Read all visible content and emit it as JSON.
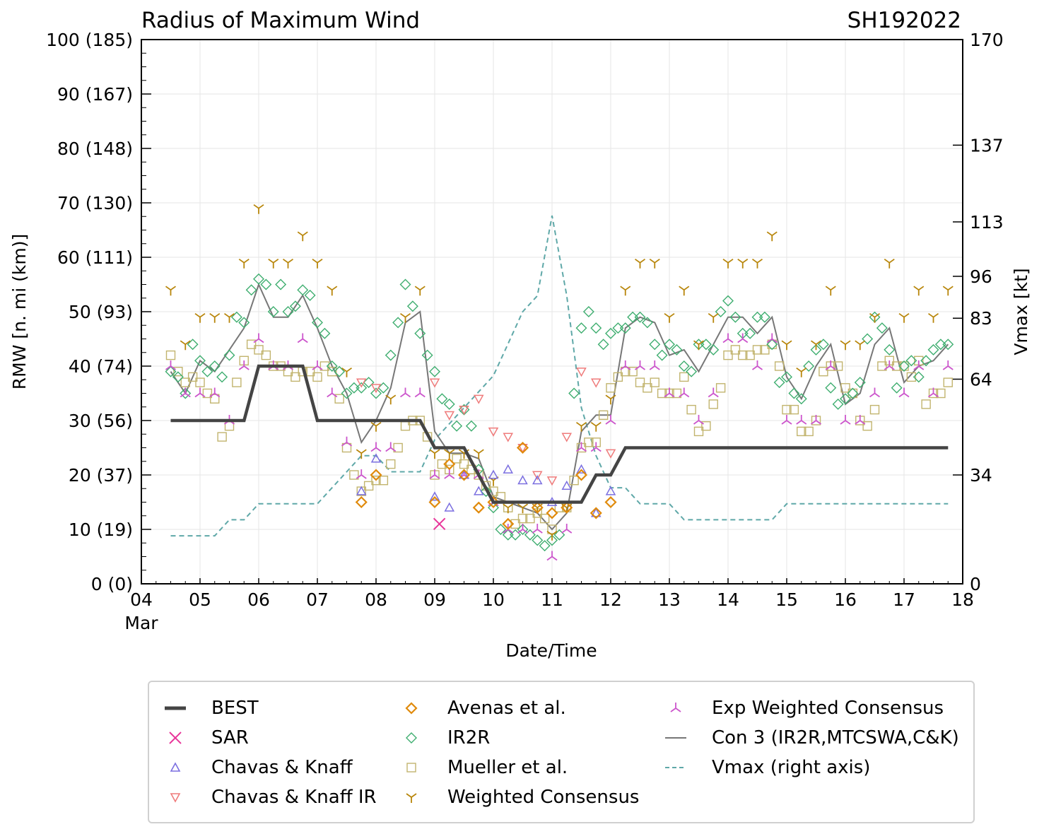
{
  "chart_data": {
    "type": "line",
    "title": "Radius of Maximum Wind",
    "storm_id": "SH192022",
    "xlabel": "Date/Time",
    "ylabel": "RMW [n. mi (km)]",
    "ylabel_right": "Vmax [kt]",
    "x_range_days": [
      4,
      18
    ],
    "x_ticks": [
      "04",
      "05",
      "06",
      "07",
      "08",
      "09",
      "10",
      "11",
      "12",
      "13",
      "14",
      "15",
      "16",
      "17",
      "18"
    ],
    "x_month_label": "Mar",
    "ylim": [
      0,
      100
    ],
    "y_ticks": [
      "0 (0)",
      "10 (19)",
      "20 (37)",
      "30 (56)",
      "40 (74)",
      "50 (93)",
      "60 (111)",
      "70 (130)",
      "80 (148)",
      "90 (167)",
      "100 (185)"
    ],
    "y_right_ticks": [
      {
        "label": "0",
        "value": 0
      },
      {
        "label": "34",
        "value": 20
      },
      {
        "label": "64",
        "value": 37.6
      },
      {
        "label": "83",
        "value": 48.8
      },
      {
        "label": "96",
        "value": 56.5
      },
      {
        "label": "113",
        "value": 66.5
      },
      {
        "label": "137",
        "value": 80.6
      },
      {
        "label": "170",
        "value": 100
      }
    ],
    "grid": true,
    "series": [
      {
        "name": "BEST",
        "type": "line",
        "color": "#444444",
        "x": [
          4.5,
          5.75,
          6.0,
          6.75,
          7.0,
          8.75,
          9.0,
          9.5,
          10.0,
          11.5,
          11.75,
          12.0,
          12.25,
          17.75
        ],
        "y": [
          30,
          30,
          40,
          40,
          30,
          30,
          25,
          25,
          15,
          15,
          20,
          20,
          25,
          25
        ]
      },
      {
        "name": "SAR",
        "type": "scatter",
        "marker": "x",
        "color": "#e8359a",
        "x": [
          9.08
        ],
        "y": [
          11
        ]
      },
      {
        "name": "Chavas & Knaff",
        "type": "scatter",
        "marker": "triangle-up",
        "color": "#7b6fe0",
        "x": [
          7.75,
          8.0,
          9.0,
          9.25,
          9.5,
          9.75,
          10.0,
          10.25,
          10.5,
          10.75,
          11.0,
          11.25,
          11.5,
          11.75,
          12.0
        ],
        "y": [
          17,
          23,
          16,
          14,
          20,
          17,
          20,
          21,
          19,
          19,
          15,
          18,
          21,
          13,
          17
        ]
      },
      {
        "name": "Chavas & Knaff IR",
        "type": "scatter",
        "marker": "triangle-down",
        "color": "#ef7b7b",
        "x": [
          7.75,
          8.0,
          9.0,
          9.25,
          9.5,
          9.75,
          10.0,
          10.25,
          10.5,
          10.75,
          11.0,
          11.25,
          11.5,
          11.75,
          12.0
        ],
        "y": [
          37,
          36,
          37,
          31,
          32,
          34,
          28,
          27,
          25,
          20,
          19,
          27,
          39,
          37,
          24
        ]
      },
      {
        "name": "Avenas et al.",
        "type": "scatter",
        "marker": "diamond",
        "color": "#e08a0b",
        "x": [
          7.75,
          8.0,
          9.0,
          9.25,
          9.5,
          9.75,
          10.0,
          10.25,
          10.5,
          10.75,
          11.0,
          11.25,
          11.5,
          11.75,
          12.0
        ],
        "y": [
          15,
          20,
          15,
          22,
          20,
          14,
          15,
          11,
          25,
          14,
          13,
          14,
          20,
          13,
          15
        ]
      },
      {
        "name": "IR2R",
        "type": "scatter",
        "marker": "diamond",
        "color": "#3fae70",
        "x": [
          4.5,
          4.625,
          4.75,
          4.875,
          5.0,
          5.125,
          5.25,
          5.375,
          5.5,
          5.625,
          5.75,
          5.875,
          6.0,
          6.125,
          6.25,
          6.375,
          6.5,
          6.625,
          6.75,
          6.875,
          7.0,
          7.125,
          7.25,
          7.375,
          7.5,
          7.625,
          7.75,
          7.875,
          8.0,
          8.125,
          8.25,
          8.375,
          8.5,
          8.625,
          8.75,
          8.875,
          9.0,
          9.125,
          9.25,
          9.375,
          9.5,
          9.625,
          9.75,
          9.875,
          10.0,
          10.125,
          10.25,
          10.375,
          10.5,
          10.625,
          10.75,
          10.875,
          11.0,
          11.125,
          11.25,
          11.375,
          11.5,
          11.625,
          11.75,
          11.875,
          12.0,
          12.125,
          12.25,
          12.375,
          12.5,
          12.625,
          12.75,
          12.875,
          13.0,
          13.125,
          13.25,
          13.375,
          13.5,
          13.625,
          13.75,
          13.875,
          14.0,
          14.125,
          14.25,
          14.375,
          14.5,
          14.625,
          14.75,
          14.875,
          15.0,
          15.125,
          15.25,
          15.375,
          15.5,
          15.625,
          15.75,
          15.875,
          16.0,
          16.125,
          16.25,
          16.375,
          16.5,
          16.625,
          16.75,
          16.875,
          17.0,
          17.125,
          17.25,
          17.375,
          17.5,
          17.625,
          17.75
        ],
        "y": [
          39,
          38,
          35,
          44,
          41,
          39,
          40,
          38,
          42,
          49,
          48,
          54,
          56,
          55,
          50,
          55,
          50,
          51,
          54,
          53,
          48,
          46,
          40,
          39,
          35,
          36,
          36,
          37,
          35,
          36,
          42,
          48,
          55,
          51,
          46,
          42,
          39,
          34,
          33,
          29,
          32,
          29,
          21,
          17,
          14,
          10,
          9,
          9,
          10,
          9,
          8,
          7,
          8,
          9,
          14,
          35,
          47,
          50,
          47,
          44,
          46,
          47,
          47,
          49,
          49,
          48,
          44,
          42,
          44,
          43,
          40,
          39,
          44,
          44,
          43,
          50,
          52,
          49,
          46,
          46,
          49,
          49,
          44,
          37,
          38,
          35,
          34,
          40,
          43,
          44,
          36,
          33,
          34,
          35,
          37,
          45,
          49,
          47,
          43,
          36,
          40,
          41,
          38,
          41,
          43,
          44,
          44
        ]
      },
      {
        "name": "Mueller et al.",
        "type": "scatter",
        "marker": "square",
        "color": "#c2b46e",
        "x": [
          4.5,
          4.625,
          4.75,
          4.875,
          5.0,
          5.125,
          5.25,
          5.375,
          5.5,
          5.625,
          5.75,
          5.875,
          6.0,
          6.125,
          6.25,
          6.375,
          6.5,
          6.625,
          6.75,
          6.875,
          7.0,
          7.125,
          7.25,
          7.375,
          7.5,
          7.625,
          7.75,
          7.875,
          8.0,
          8.125,
          8.25,
          8.375,
          8.5,
          8.625,
          8.75,
          8.875,
          9.0,
          9.125,
          9.25,
          9.375,
          9.5,
          9.625,
          9.75,
          9.875,
          10.0,
          10.125,
          10.25,
          10.375,
          10.5,
          10.625,
          10.75,
          10.875,
          11.0,
          11.125,
          11.25,
          11.375,
          11.5,
          11.625,
          11.75,
          11.875,
          12.0,
          12.125,
          12.25,
          12.375,
          12.5,
          12.625,
          12.75,
          12.875,
          13.0,
          13.125,
          13.25,
          13.375,
          13.5,
          13.625,
          13.75,
          13.875,
          14.0,
          14.125,
          14.25,
          14.375,
          14.5,
          14.625,
          14.75,
          14.875,
          15.0,
          15.125,
          15.25,
          15.375,
          15.5,
          15.625,
          15.75,
          15.875,
          16.0,
          16.125,
          16.25,
          16.375,
          16.5,
          16.625,
          16.75,
          16.875,
          17.0,
          17.125,
          17.25,
          17.375,
          17.5,
          17.625,
          17.75
        ],
        "y": [
          42,
          39,
          37,
          38,
          37,
          35,
          34,
          27,
          29,
          37,
          41,
          44,
          43,
          42,
          40,
          40,
          39,
          38,
          39,
          39,
          38,
          40,
          39,
          34,
          25,
          20,
          17,
          18,
          19,
          19,
          22,
          25,
          29,
          30,
          30,
          27,
          20,
          22,
          21,
          23,
          22,
          21,
          20,
          18,
          17,
          16,
          14,
          11,
          12,
          12,
          13,
          12,
          10,
          14,
          14,
          19,
          25,
          26,
          26,
          31,
          36,
          38,
          39,
          39,
          37,
          36,
          37,
          35,
          35,
          35,
          38,
          32,
          28,
          29,
          33,
          36,
          42,
          43,
          42,
          42,
          43,
          43,
          44,
          40,
          32,
          32,
          28,
          28,
          30,
          39,
          40,
          40,
          36,
          35,
          30,
          29,
          32,
          40,
          41,
          40,
          40,
          38,
          41,
          33,
          35,
          35,
          37
        ]
      },
      {
        "name": "Weighted Consensus",
        "type": "scatter",
        "marker": "tri-down",
        "color": "#b8860b",
        "x": [
          4.5,
          4.75,
          5.0,
          5.25,
          5.5,
          5.75,
          6.0,
          6.25,
          6.5,
          6.75,
          7.0,
          7.25,
          7.5,
          7.75,
          8.0,
          8.25,
          8.5,
          8.75,
          9.0,
          9.25,
          9.5,
          9.75,
          10.0,
          10.25,
          10.5,
          10.75,
          11.0,
          11.25,
          11.5,
          11.75,
          12.0,
          12.25,
          12.5,
          12.75,
          13.0,
          13.25,
          13.5,
          13.75,
          14.0,
          14.25,
          14.5,
          14.75,
          15.0,
          15.25,
          15.5,
          15.75,
          16.0,
          16.25,
          16.5,
          16.75,
          17.0,
          17.25,
          17.5,
          17.75
        ],
        "y": [
          54,
          44,
          49,
          49,
          49,
          59,
          69,
          59,
          59,
          64,
          59,
          54,
          39,
          24,
          29,
          34,
          49,
          54,
          24,
          24,
          24,
          24,
          19,
          14,
          14,
          14,
          9,
          14,
          29,
          29,
          34,
          54,
          59,
          59,
          49,
          54,
          44,
          49,
          59,
          59,
          59,
          64,
          44,
          39,
          44,
          54,
          44,
          44,
          49,
          59,
          49,
          54,
          49,
          54
        ]
      },
      {
        "name": "Exp Weighted Consensus",
        "type": "scatter",
        "marker": "tri-up",
        "color": "#cc55cc",
        "x": [
          4.5,
          4.75,
          5.0,
          5.25,
          5.5,
          5.75,
          6.0,
          6.25,
          6.5,
          6.75,
          7.0,
          7.25,
          7.5,
          7.75,
          8.0,
          8.25,
          8.5,
          8.75,
          9.0,
          9.25,
          9.5,
          9.75,
          10.0,
          10.25,
          10.5,
          10.75,
          11.0,
          11.25,
          11.5,
          11.75,
          12.0,
          12.25,
          12.5,
          12.75,
          13.0,
          13.25,
          13.5,
          13.75,
          14.0,
          14.25,
          14.5,
          14.75,
          15.0,
          15.25,
          15.5,
          15.75,
          16.0,
          16.25,
          16.5,
          16.75,
          17.0,
          17.25,
          17.5,
          17.75
        ],
        "y": [
          40,
          35,
          35,
          35,
          30,
          40,
          45,
          40,
          40,
          45,
          40,
          35,
          26,
          20,
          25,
          25,
          35,
          35,
          20,
          20,
          20,
          20,
          15,
          10,
          10,
          10,
          5,
          10,
          25,
          25,
          30,
          40,
          40,
          40,
          35,
          35,
          30,
          35,
          45,
          45,
          40,
          45,
          30,
          30,
          30,
          40,
          30,
          30,
          35,
          40,
          35,
          40,
          35,
          40
        ]
      },
      {
        "name": "Con 3 (IR2R,MTCSWA,C&K)",
        "type": "line",
        "color": "#777777",
        "x": [
          4.5,
          4.75,
          5.0,
          5.25,
          5.5,
          5.75,
          6.0,
          6.25,
          6.5,
          6.75,
          7.0,
          7.25,
          7.5,
          7.75,
          8.0,
          8.25,
          8.5,
          8.75,
          9.0,
          9.25,
          9.5,
          9.75,
          10.0,
          10.25,
          10.5,
          10.75,
          11.0,
          11.25,
          11.5,
          11.75,
          12.0,
          12.25,
          12.5,
          12.75,
          13.0,
          13.25,
          13.5,
          13.75,
          14.0,
          14.25,
          14.5,
          14.75,
          15.0,
          15.25,
          15.5,
          15.75,
          16.0,
          16.25,
          16.5,
          16.75,
          17.0,
          17.25,
          17.5,
          17.75
        ],
        "y": [
          39,
          35,
          41,
          39,
          43,
          47,
          55,
          49,
          49,
          53,
          47,
          40,
          35,
          26,
          30,
          36,
          48,
          50,
          28,
          24,
          24,
          23,
          16,
          15,
          14,
          13,
          10,
          13,
          28,
          31,
          31,
          47,
          49,
          48,
          42,
          43,
          39,
          44,
          49,
          49,
          46,
          49,
          38,
          34,
          40,
          44,
          33,
          35,
          44,
          47,
          37,
          40,
          41,
          44
        ]
      },
      {
        "name": "Vmax (right axis)",
        "type": "line",
        "axis": "right",
        "dash": true,
        "color": "#5fa8a8",
        "x": [
          4.5,
          5.0,
          5.25,
          5.5,
          5.75,
          6.0,
          7.0,
          7.25,
          7.5,
          7.75,
          8.0,
          8.25,
          8.5,
          8.75,
          9.0,
          9.25,
          9.5,
          9.75,
          10.0,
          10.25,
          10.5,
          10.75,
          11.0,
          11.25,
          11.5,
          11.75,
          12.0,
          12.25,
          12.5,
          12.75,
          13.0,
          13.25,
          14.75,
          15.0,
          17.75
        ],
        "y": [
          15,
          15,
          15,
          20,
          20,
          25,
          25,
          30,
          35,
          40,
          40,
          35,
          35,
          35,
          45,
          50,
          55,
          60,
          65,
          75,
          85,
          90,
          115,
          90,
          55,
          40,
          30,
          30,
          25,
          25,
          25,
          20,
          20,
          25,
          25
        ]
      }
    ]
  },
  "legend": {
    "items": [
      {
        "label": "BEST",
        "key": "best"
      },
      {
        "label": "SAR",
        "key": "sar"
      },
      {
        "label": "Chavas & Knaff",
        "key": "ck"
      },
      {
        "label": "Chavas & Knaff IR",
        "key": "ckir"
      },
      {
        "label": "Avenas et al.",
        "key": "avenas"
      },
      {
        "label": "IR2R",
        "key": "ir2r"
      },
      {
        "label": "Mueller et al.",
        "key": "mueller"
      },
      {
        "label": "Weighted Consensus",
        "key": "wc"
      },
      {
        "label": "Exp Weighted Consensus",
        "key": "ewc"
      },
      {
        "label": "Con 3 (IR2R,MTCSWA,C&K)",
        "key": "con3"
      },
      {
        "label": "Vmax (right axis)",
        "key": "vmax"
      }
    ]
  }
}
